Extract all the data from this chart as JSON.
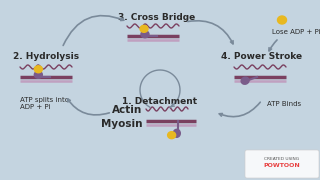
{
  "bg_color": "#c4d4e0",
  "text_color": "#2a2a2a",
  "arrow_color": "#7a8a9a",
  "actin_color": "#7a4060",
  "myosin_head_color": "#7a5c8a",
  "atp_color": "#e8b820",
  "filament_top_color": "#7a4060",
  "filament_bot_color": "#c0a0c0",
  "labels": {
    "step1": "1. Detachment",
    "step2": "2. Hydrolysis",
    "step3": "3. Cross Bridge",
    "step4": "4. Power Stroke",
    "actin": "Actin",
    "myosin": "Myosin",
    "lose_adp": "Lose ADP + Pi",
    "atp_binds": "ATP Binds",
    "atp_splits": "ATP splits into\nADP + Pi"
  },
  "font_sizes": {
    "step_label": 6.5,
    "actin_myosin": 7.5,
    "annotation": 5.0
  }
}
